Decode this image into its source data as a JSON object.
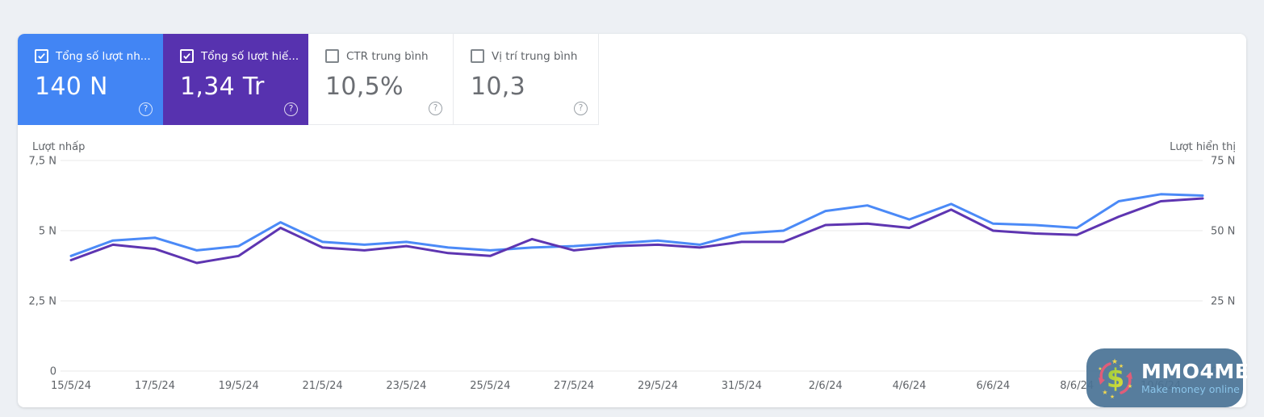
{
  "page": {
    "background": "#edf0f4",
    "panel_background": "#ffffff"
  },
  "icons": {
    "help": "?"
  },
  "metric_cards": [
    {
      "label": "Tổng số lượt nh...",
      "value": "140 N",
      "checked": true,
      "color": "#4285f4"
    },
    {
      "label": "Tổng số lượt hiế...",
      "value": "1,34 Tr",
      "checked": true,
      "color": "#5732af"
    },
    {
      "label": "CTR trung bình",
      "value": "10,5%",
      "checked": false,
      "color": "#ffffff"
    },
    {
      "label": "Vị trí trung bình",
      "value": "10,3",
      "checked": false,
      "color": "#ffffff"
    }
  ],
  "chart_data": {
    "type": "line",
    "units": "N = thousands (nghìn)",
    "grid": true,
    "legend_position": "none",
    "x": [
      "15/5/24",
      "16/5/24",
      "17/5/24",
      "18/5/24",
      "19/5/24",
      "20/5/24",
      "21/5/24",
      "22/5/24",
      "23/5/24",
      "24/5/24",
      "25/5/24",
      "26/5/24",
      "27/5/24",
      "28/5/24",
      "29/5/24",
      "30/5/24",
      "31/5/24",
      "1/6/24",
      "2/6/24",
      "3/6/24",
      "4/6/24",
      "5/6/24",
      "6/6/24",
      "7/6/24",
      "8/6/24",
      "9/6/24",
      "10/6/24",
      "11/6/24"
    ],
    "x_tick_every": 2,
    "left_axis": {
      "title": "Lượt nhấp",
      "max": 7.5,
      "tick_values": [
        7.5,
        5,
        2.5,
        0
      ],
      "tick_labels": [
        "7,5 N",
        "5 N",
        "2,5 N",
        "0"
      ]
    },
    "right_axis": {
      "title": "Lượt hiển thị",
      "max": 75,
      "tick_values": [
        75,
        50,
        25,
        0
      ],
      "tick_labels": [
        "75 N",
        "50 N",
        "25 N",
        "0"
      ]
    },
    "series": [
      {
        "name": "Tổng số lượt nhấp (N)",
        "axis": "left",
        "color": "#4b8af7",
        "values": [
          4.1,
          4.65,
          4.75,
          4.3,
          4.45,
          5.3,
          4.6,
          4.5,
          4.6,
          4.4,
          4.3,
          4.4,
          4.45,
          4.55,
          4.65,
          4.5,
          4.9,
          5.0,
          5.7,
          5.9,
          5.4,
          5.95,
          5.25,
          5.2,
          5.1,
          6.05,
          6.3,
          6.25
        ]
      },
      {
        "name": "Tổng số lượt hiển thị (N)",
        "axis": "right",
        "color": "#5e35b1",
        "values": [
          39.5,
          45,
          43.5,
          38.5,
          41,
          51,
          44,
          43,
          44.5,
          42,
          41,
          47,
          43,
          44.5,
          45,
          44,
          46,
          46,
          52,
          52.5,
          51,
          57.5,
          50,
          49,
          48.5,
          55,
          60.5,
          61.5
        ]
      }
    ]
  },
  "watermark": {
    "title": "MMO4ME",
    "subtitle": "Make money online",
    "badge_color": "#4a7396",
    "icon": "dollar-recycle-arrows-icon"
  }
}
